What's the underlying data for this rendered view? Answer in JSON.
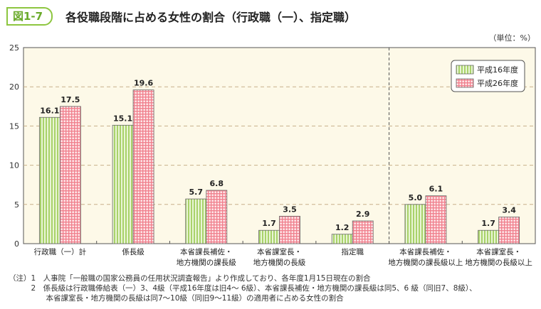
{
  "figure_label": "図1-7",
  "title": "各役職段階に占める女性の割合（行政職（一）、指定職）",
  "unit": "（単位：%）",
  "notes": [
    "（注）1　人事院「一般職の国家公務員の任用状況調査報告」より作成しており、各年度1月15日現在の割合",
    "　　　2　係長級は行政職俸給表（一）3、4級（平成16年度は旧4～ 6級）、本省課長補佐・地方機関の課長級は同5、6 級（同旧7、8級）、",
    "　　　　　本省課室長・地方機関の長級は同7～10級（同旧9～11級）の適用者に占める女性の割合"
  ],
  "chart_data": {
    "type": "bar",
    "title": "各役職段階に占める女性の割合（行政職（一）、指定職）",
    "ylabel": "（単位：%）",
    "ylim": [
      0,
      25
    ],
    "yticks": [
      0,
      5,
      10,
      15,
      20,
      25
    ],
    "grid": true,
    "legend_placement": "top-right",
    "categories": [
      [
        "行政職（一）計"
      ],
      [
        "係長級"
      ],
      [
        "本省課長補佐・",
        "地方機関の課長級"
      ],
      [
        "本省課室長・",
        "地方機関の長級"
      ],
      [
        "指定職"
      ],
      [
        "本省課長補佐・",
        "地方機関の課長級以上"
      ],
      [
        "本省課室長・",
        "地方機関の長級以上"
      ]
    ],
    "divider_after_category": 4,
    "series": [
      {
        "name": "平成16年度",
        "values": [
          16.1,
          15.1,
          5.7,
          1.7,
          1.2,
          5.0,
          1.7
        ],
        "color": "#a9d26a",
        "pattern": "vertical-stripes"
      },
      {
        "name": "平成26年度",
        "values": [
          17.5,
          19.6,
          6.8,
          3.5,
          2.9,
          6.1,
          3.4
        ],
        "color": "#f07f8c",
        "pattern": "grid"
      }
    ]
  }
}
